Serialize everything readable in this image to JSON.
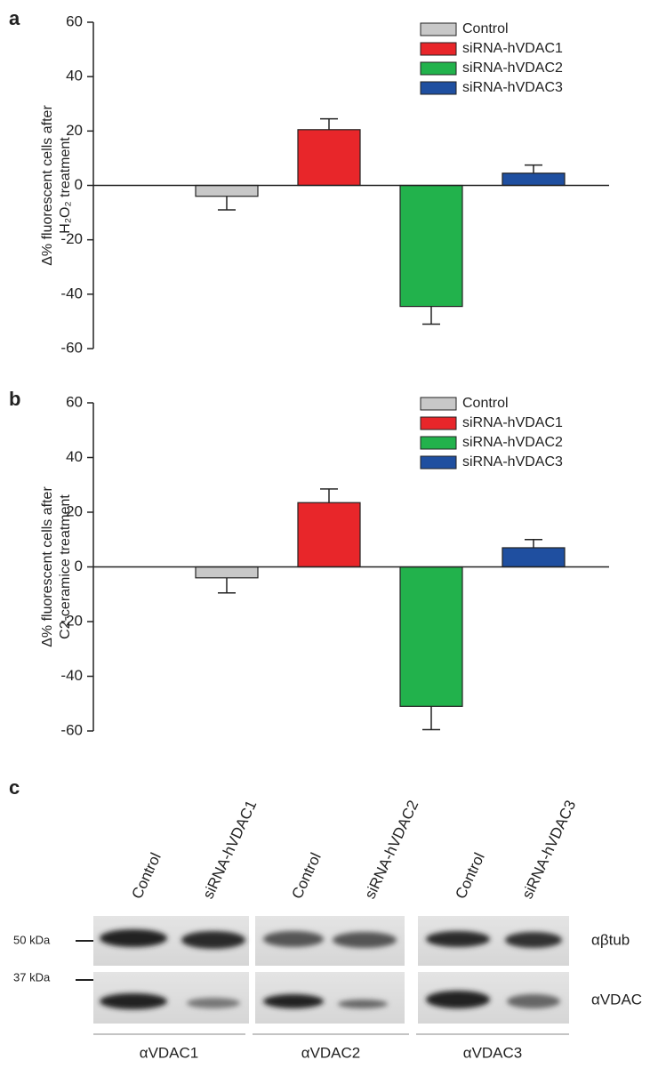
{
  "chart_data": [
    {
      "type": "bar",
      "panel": "a",
      "ylabel": [
        "Δ% fluorescent cells after",
        "H₂O₂ treatment"
      ],
      "ylim": [
        -60,
        60
      ],
      "yticks": [
        -60,
        -40,
        -20,
        0,
        20,
        40,
        60
      ],
      "series": [
        {
          "name": "Control",
          "color": "#c8c8c8",
          "values": [
            -4
          ],
          "errors": [
            5
          ]
        },
        {
          "name": "siRNA-hVDAC1",
          "color": "#e8262a",
          "values": [
            20.5
          ],
          "errors": [
            4
          ]
        },
        {
          "name": "siRNA-hVDAC2",
          "color": "#22b24c",
          "values": [
            -44.5
          ],
          "errors": [
            6.5
          ]
        },
        {
          "name": "siRNA-hVDAC3",
          "color": "#1f4fa0",
          "values": [
            4.5
          ],
          "errors": [
            3
          ]
        }
      ]
    },
    {
      "type": "bar",
      "panel": "b",
      "ylabel": [
        "Δ% fluorescent cells after",
        "C2-ceramice treatment"
      ],
      "ylim": [
        -60,
        60
      ],
      "yticks": [
        -60,
        -40,
        -20,
        0,
        20,
        40,
        60
      ],
      "series": [
        {
          "name": "Control",
          "color": "#c8c8c8",
          "values": [
            -4
          ],
          "errors": [
            5.5
          ]
        },
        {
          "name": "siRNA-hVDAC1",
          "color": "#e8262a",
          "values": [
            23.5
          ],
          "errors": [
            5
          ]
        },
        {
          "name": "siRNA-hVDAC2",
          "color": "#22b24c",
          "values": [
            -51
          ],
          "errors": [
            8.5
          ]
        },
        {
          "name": "siRNA-hVDAC3",
          "color": "#1f4fa0",
          "values": [
            7
          ],
          "errors": [
            3
          ]
        }
      ]
    }
  ],
  "blot": {
    "panel": "c",
    "lanes": [
      "Control",
      "siRNA-hVDAC1",
      "Control",
      "siRNA-hVDAC2",
      "Control",
      "siRNA-hVDAC3"
    ],
    "markers": [
      "50 kDa",
      "37 kDa"
    ],
    "rows": [
      "αβtub",
      "αVDAC"
    ],
    "groups": [
      "αVDAC1",
      "αVDAC2",
      "αVDAC3"
    ]
  }
}
